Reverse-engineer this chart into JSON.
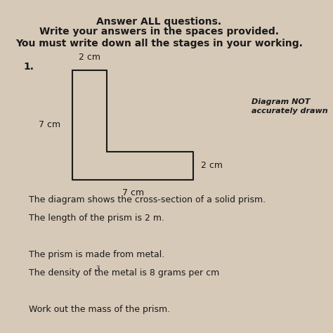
{
  "background_color": "#d6c9b8",
  "header_lines": [
    {
      "text": "Answer ALL questions.",
      "bold": true,
      "fontsize": 10
    },
    {
      "text": "Write your answers in the spaces provided.",
      "bold": true,
      "fontsize": 10
    },
    {
      "text": "You must write down all the stages in your working.",
      "bold": true,
      "fontsize": 10
    }
  ],
  "question_number": "1.",
  "diagram_note": "Diagram NOT\naccurately drawn",
  "shape_label_top": "2 cm",
  "shape_label_left": "7 cm",
  "shape_label_right": "2 cm",
  "shape_label_bottom": "7 cm",
  "body_lines": [
    "The diagram shows the cross-section of a solid prism.",
    "The length of the prism is 2 m.",
    "",
    "The prism is made from metal.",
    "The density of the metal is 8 grams per cm³.",
    "",
    "Work out the mass of the prism."
  ],
  "text_color": "#1a1a1a",
  "shape_color": "#1a1a1a",
  "shape_lw": 1.5
}
